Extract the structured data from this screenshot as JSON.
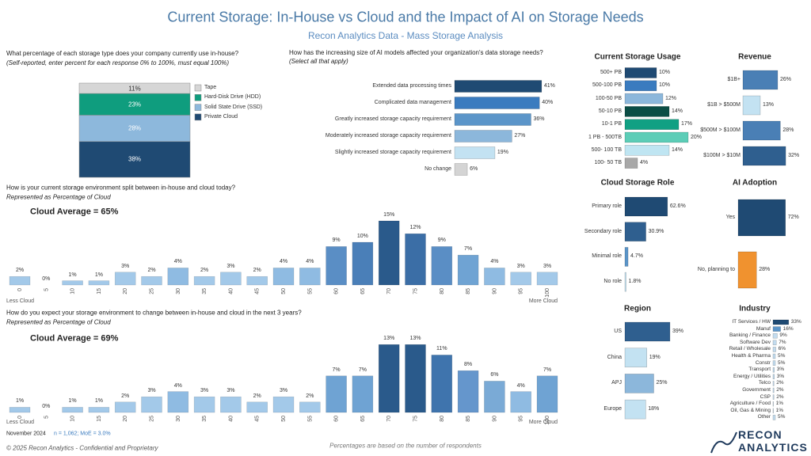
{
  "header": {
    "title": "Current Storage: In-House vs Cloud and the Impact of AI on Storage Needs",
    "subtitle": "Recon Analytics Data - Mass Storage Analysis"
  },
  "chart_data": [
    {
      "type": "stacked-bar",
      "title": "What percentage of each storage type does your company currently use in-house?",
      "subtitle": "(Self-reported, enter percent for each response 0% to 100%, must equal 100%)",
      "series": [
        {
          "name": "Tape",
          "color": "#d6d6d6",
          "values": [
            11
          ],
          "value_labels": [
            "11%"
          ]
        },
        {
          "name": "Hard-Disk Drive (HDD)",
          "color": "#0f9d7e",
          "values": [
            23
          ],
          "value_labels": [
            "23%"
          ]
        },
        {
          "name": "Solid State Drive (SSD)",
          "color": "#8db8dc",
          "values": [
            28
          ],
          "value_labels": [
            "28%"
          ]
        },
        {
          "name": "Private Cloud",
          "color": "#1f4a73",
          "values": [
            38
          ],
          "value_labels": [
            "38%"
          ]
        }
      ]
    },
    {
      "type": "hbar",
      "title": "How has the increasing size of AI models affected your organization's data storage needs?",
      "subtitle": "(Select all that apply)",
      "categories": [
        "Extended data processing times",
        "Complicated data management",
        "Greatly increased storage capacity requirement",
        "Moderately increased storage capacity requirement",
        "Slightly increased storage capacity requirement",
        "No change"
      ],
      "values": [
        41,
        40,
        36,
        27,
        19,
        6
      ],
      "value_labels": [
        "41%",
        "40%",
        "36%",
        "27%",
        "19%",
        "6%"
      ],
      "colors": [
        "#1f4a73",
        "#3a7bbf",
        "#5b95c9",
        "#8cb7db",
        "#c3e2f2",
        "#d4d4d4"
      ]
    },
    {
      "type": "bar",
      "title": "How is your current storage environment split between in-house and cloud today?",
      "subtitle": "Represented as Percentage of Cloud",
      "annotation": "Cloud Average = 65%",
      "xlabel_left": "Less Cloud",
      "xlabel_right": "More Cloud",
      "categories": [
        "0",
        "5",
        "10",
        "15",
        "20",
        "25",
        "30",
        "35",
        "40",
        "45",
        "50",
        "55",
        "60",
        "65",
        "70",
        "75",
        "80",
        "85",
        "90",
        "95",
        "100"
      ],
      "values": [
        2,
        0,
        1,
        1,
        3,
        2,
        4,
        2,
        3,
        2,
        4,
        4,
        9,
        10,
        15,
        12,
        9,
        7,
        4,
        3,
        3
      ],
      "value_labels": [
        "2%",
        "0%",
        "1%",
        "1%",
        "3%",
        "2%",
        "4%",
        "2%",
        "3%",
        "2%",
        "4%",
        "4%",
        "9%",
        "10%",
        "15%",
        "12%",
        "9%",
        "7%",
        "4%",
        "3%",
        "3%"
      ],
      "colors": [
        "#a3c9e9",
        "#a3c9e9",
        "#a3c9e9",
        "#a3c9e9",
        "#a3c9e9",
        "#a3c9e9",
        "#8fbbe2",
        "#a3c9e9",
        "#a3c9e9",
        "#a3c9e9",
        "#8fbbe2",
        "#8fbbe2",
        "#5a8ec5",
        "#4a7fb8",
        "#2a5a8b",
        "#3b6ea6",
        "#5a8ec5",
        "#6fa3d3",
        "#8fbbe2",
        "#a3c9e9",
        "#a3c9e9"
      ]
    },
    {
      "type": "bar",
      "title": "How do you expect your storage environment to change between in-house and cloud in the next 3 years?",
      "subtitle": "Represented as Percentage of Cloud",
      "annotation": "Cloud Average = 69%",
      "xlabel_left": "Less Cloud",
      "xlabel_right": "More Cloud",
      "categories": [
        "0",
        "5",
        "10",
        "15",
        "20",
        "25",
        "30",
        "35",
        "40",
        "45",
        "50",
        "55",
        "60",
        "65",
        "70",
        "75",
        "80",
        "85",
        "90",
        "95",
        "100"
      ],
      "values": [
        1,
        0,
        1,
        1,
        2,
        3,
        4,
        3,
        3,
        2,
        3,
        2,
        7,
        7,
        13,
        13,
        11,
        8,
        6,
        4,
        7
      ],
      "value_labels": [
        "1%",
        "0%",
        "1%",
        "1%",
        "2%",
        "3%",
        "4%",
        "3%",
        "3%",
        "2%",
        "3%",
        "2%",
        "7%",
        "7%",
        "13%",
        "13%",
        "11%",
        "8%",
        "6%",
        "4%",
        "7%"
      ],
      "colors": [
        "#a3c9e9",
        "#a3c9e9",
        "#a3c9e9",
        "#a3c9e9",
        "#a3c9e9",
        "#a3c9e9",
        "#8fbbe2",
        "#a3c9e9",
        "#a3c9e9",
        "#a3c9e9",
        "#a3c9e9",
        "#a3c9e9",
        "#6fa3d3",
        "#6fa3d3",
        "#2a5a8b",
        "#2a5a8b",
        "#3f74ad",
        "#6596cc",
        "#7aaad6",
        "#8fbbe2",
        "#6fa3d3"
      ]
    },
    {
      "type": "hbar",
      "title": "Current Storage Usage",
      "categories": [
        "500+ PB",
        "500-100 PB",
        "100-50 PB",
        "50-10 PB",
        "10-1 PB",
        "1 PB - 500TB",
        "500- 100 TB",
        "100- 50 TB"
      ],
      "values": [
        10,
        10,
        12,
        14,
        17,
        20,
        14,
        4
      ],
      "value_labels": [
        "10%",
        "10%",
        "12%",
        "14%",
        "17%",
        "20%",
        "14%",
        "4%"
      ],
      "colors": [
        "#1f4a73",
        "#3a7bbf",
        "#8cb7db",
        "#0b4d45",
        "#11a083",
        "#5ccdb7",
        "#bfe5f2",
        "#a8a8a8"
      ]
    },
    {
      "type": "hbar",
      "title": "Revenue",
      "categories": [
        "$1B+",
        "$1B > $500M",
        "$500M > $100M",
        "$100M > $10M"
      ],
      "values": [
        26,
        13,
        28,
        32
      ],
      "value_labels": [
        "26%",
        "13%",
        "28%",
        "32%"
      ],
      "colors": [
        "#4a7fb5",
        "#c3e2f2",
        "#4a7fb5",
        "#2f5f8f"
      ]
    },
    {
      "type": "hbar",
      "title": "Cloud Storage Role",
      "categories": [
        "Primary role",
        "Secondary role",
        "Minimal role",
        "No role"
      ],
      "values": [
        62.6,
        30.9,
        4.7,
        1.8
      ],
      "value_labels": [
        "62.6%",
        "30.9%",
        "4.7%",
        "1.8%"
      ],
      "colors": [
        "#1f4a73",
        "#2f5f8f",
        "#5b95c9",
        "#c3e2f2"
      ]
    },
    {
      "type": "hbar",
      "title": "AI Adoption",
      "categories": [
        "Yes",
        "No, planning to"
      ],
      "values": [
        72,
        28
      ],
      "value_labels": [
        "72%",
        "28%"
      ],
      "colors": [
        "#1f4a73",
        "#f0922f"
      ]
    },
    {
      "type": "hbar",
      "title": "Region",
      "categories": [
        "US",
        "China",
        "APJ",
        "Europe"
      ],
      "values": [
        39,
        19,
        25,
        18
      ],
      "value_labels": [
        "39%",
        "19%",
        "25%",
        "18%"
      ],
      "colors": [
        "#2f5f8f",
        "#c3e2f2",
        "#8cb7db",
        "#c3e2f2"
      ]
    },
    {
      "type": "hbar",
      "title": "Industry",
      "categories": [
        "IT Services / HW",
        "Manuf",
        "Banking / Finance",
        "Software Dev",
        "Retail / Wholesale",
        "Health & Pharma",
        "Constr",
        "Transport",
        "Energy / Utilities",
        "Telco",
        "Government",
        "CSP",
        "Agriculture / Food",
        "Oil, Gas & Mining",
        "Other"
      ],
      "values": [
        33,
        16,
        9,
        7,
        6,
        5,
        5,
        3,
        3,
        2,
        2,
        2,
        1,
        1,
        5
      ],
      "value_labels": [
        "33%",
        "16%",
        "9%",
        "7%",
        "6%",
        "5%",
        "5%",
        "3%",
        "3%",
        "2%",
        "2%",
        "2%",
        "1%",
        "1%",
        "5%"
      ],
      "colors": [
        "#1f4a73",
        "#5b95c9",
        "#c3dcef",
        "#c3dcef",
        "#c3dcef",
        "#c3dcef",
        "#c3dcef",
        "#c3dcef",
        "#c3dcef",
        "#c3dcef",
        "#c3dcef",
        "#c3dcef",
        "#c3dcef",
        "#c3dcef",
        "#c3dcef"
      ]
    }
  ],
  "footer": {
    "date": "November 2024",
    "sample": "n = 1,062; MoE = 3.0%",
    "copyright": "© 2025 Recon Analytics - Confidential and Proprietary",
    "note": "Percentages are based on the number of respondents",
    "logo": [
      "RECON",
      "ANALYTICS"
    ]
  }
}
